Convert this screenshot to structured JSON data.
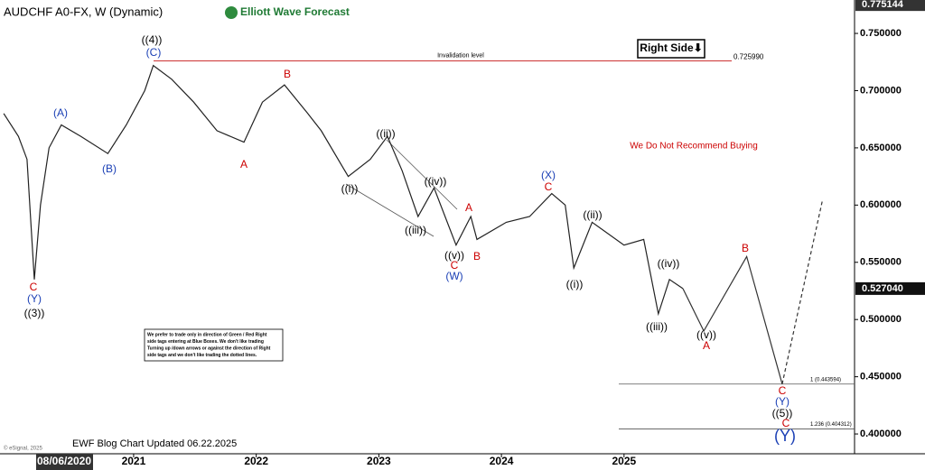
{
  "chart_data": {
    "type": "line",
    "title": "AUDCHF A0-FX, W (Dynamic)",
    "logo": "Elliott Wave Forecast",
    "side_tag": "Right Side⬇",
    "warning": "We Do Not Recommend Buying",
    "note": [
      "We prefer to trade only in direction of Green / Red Right",
      "side tags entering at Blue Boxes. We don't like trading",
      "Turning up /down arrows or against the direction of Right",
      "side tags and we don't like trading the dotted lines."
    ],
    "footer": "EWF Blog Chart Updated 06.22.2025",
    "copyright": "© eSignal, 2025",
    "cursor_date": "08/06/2020",
    "xlim": [
      2019.91,
      2026.88
    ],
    "xticks": [
      2021,
      2022,
      2023,
      2024,
      2025
    ],
    "ylim": [
      0.3827,
      0.7792
    ],
    "yticks": [
      {
        "value": 0.75,
        "label": "0.750000"
      },
      {
        "value": 0.7,
        "label": "0.700000"
      },
      {
        "value": 0.65,
        "label": "0.650000"
      },
      {
        "value": 0.6,
        "label": "0.600000"
      },
      {
        "value": 0.55,
        "label": "0.550000"
      },
      {
        "value": 0.5,
        "label": "0.500000"
      },
      {
        "value": 0.45,
        "label": "0.450000"
      },
      {
        "value": 0.4,
        "label": "0.400000"
      }
    ],
    "high_marker": {
      "value": 0.775144,
      "label": "0.775144"
    },
    "last_price": {
      "value": 0.52704,
      "label": "0.527040"
    },
    "invalidation": {
      "value": 0.72599,
      "label": "0.725990",
      "text": "Invalidation level"
    },
    "fib_levels": [
      {
        "value": 0.443594,
        "label": "1 (0.443594)"
      },
      {
        "value": 0.404312,
        "label": "1.236 (0.404312)"
      }
    ],
    "series": [
      {
        "color": "#222222",
        "x": [
          2019.94,
          2020.06,
          2020.13,
          2020.19,
          2020.24,
          2020.31,
          2020.41,
          2020.57,
          2020.79,
          2020.94,
          2021.09,
          2021.16,
          2021.31,
          2021.49,
          2021.68,
          2021.9,
          2022.05,
          2022.23,
          2022.42,
          2022.53,
          2022.75,
          2022.93,
          2023.07,
          2023.19,
          2023.32,
          2023.45,
          2023.63,
          2023.75,
          2023.8,
          2024.04,
          2024.23,
          2024.41,
          2024.52,
          2024.59,
          2024.74,
          2025.0,
          2025.16,
          2025.28,
          2025.37,
          2025.48
        ],
        "values": [
          0.68,
          0.66,
          0.64,
          0.535,
          0.6,
          0.65,
          0.67,
          0.66,
          0.645,
          0.67,
          0.7,
          0.722,
          0.71,
          0.69,
          0.665,
          0.655,
          0.69,
          0.705,
          0.68,
          0.665,
          0.625,
          0.64,
          0.66,
          0.63,
          0.59,
          0.615,
          0.565,
          0.59,
          0.57,
          0.585,
          0.59,
          0.61,
          0.6,
          0.545,
          0.585,
          0.565,
          0.57,
          0.505,
          0.535,
          0.527
        ]
      },
      {
        "color": "#333333",
        "dashed": false,
        "x": [
          2025.48,
          2025.65,
          2026.0,
          2026.29
        ],
        "values": [
          0.527,
          0.49,
          0.555,
          0.4436
        ]
      },
      {
        "color": "#333333",
        "dashed": true,
        "x": [
          2026.29,
          2026.62
        ],
        "values": [
          0.4436,
          0.605
        ]
      }
    ],
    "annotations": [
      {
        "text": "((4))",
        "color": "#000000"
      },
      {
        "text": "(C)",
        "color": "#1a3fb5"
      },
      {
        "text": "B",
        "color": "#cc0000"
      },
      {
        "text": "(A)",
        "color": "#1a3fb5"
      },
      {
        "text": "(B)",
        "color": "#1a3fb5"
      },
      {
        "text": "A",
        "color": "#cc0000"
      },
      {
        "text": "C",
        "color": "#cc0000"
      },
      {
        "text": "(Y)",
        "color": "#1a3fb5"
      },
      {
        "text": "((3))",
        "color": "#000000"
      },
      {
        "text": "((ii))",
        "color": "#000000"
      },
      {
        "text": "((i))",
        "color": "#000000"
      },
      {
        "text": "((iv))",
        "color": "#000000"
      },
      {
        "text": "((iii))",
        "color": "#000000"
      },
      {
        "text": "A",
        "color": "#cc0000"
      },
      {
        "text": "((v))",
        "color": "#000000"
      },
      {
        "text": "C",
        "color": "#cc0000"
      },
      {
        "text": "(W)",
        "color": "#1a3fb5"
      },
      {
        "text": "B",
        "color": "#cc0000"
      },
      {
        "text": "(X)",
        "color": "#1a3fb5"
      },
      {
        "text": "C",
        "color": "#cc0000"
      },
      {
        "text": "((ii))",
        "color": "#000000"
      },
      {
        "text": "((i))",
        "color": "#000000"
      },
      {
        "text": "((iv))",
        "color": "#000000"
      },
      {
        "text": "((iii))",
        "color": "#000000"
      },
      {
        "text": "((v))",
        "color": "#000000"
      },
      {
        "text": "A",
        "color": "#cc0000"
      },
      {
        "text": "B",
        "color": "#cc0000"
      },
      {
        "text": "C",
        "color": "#cc0000"
      },
      {
        "text": "(Y)",
        "color": "#1a3fb5"
      },
      {
        "text": "((5))",
        "color": "#000000"
      },
      {
        "text": "C",
        "color": "#cc0000"
      },
      {
        "text": "(Y)",
        "color": "#1a3fb5"
      }
    ]
  }
}
